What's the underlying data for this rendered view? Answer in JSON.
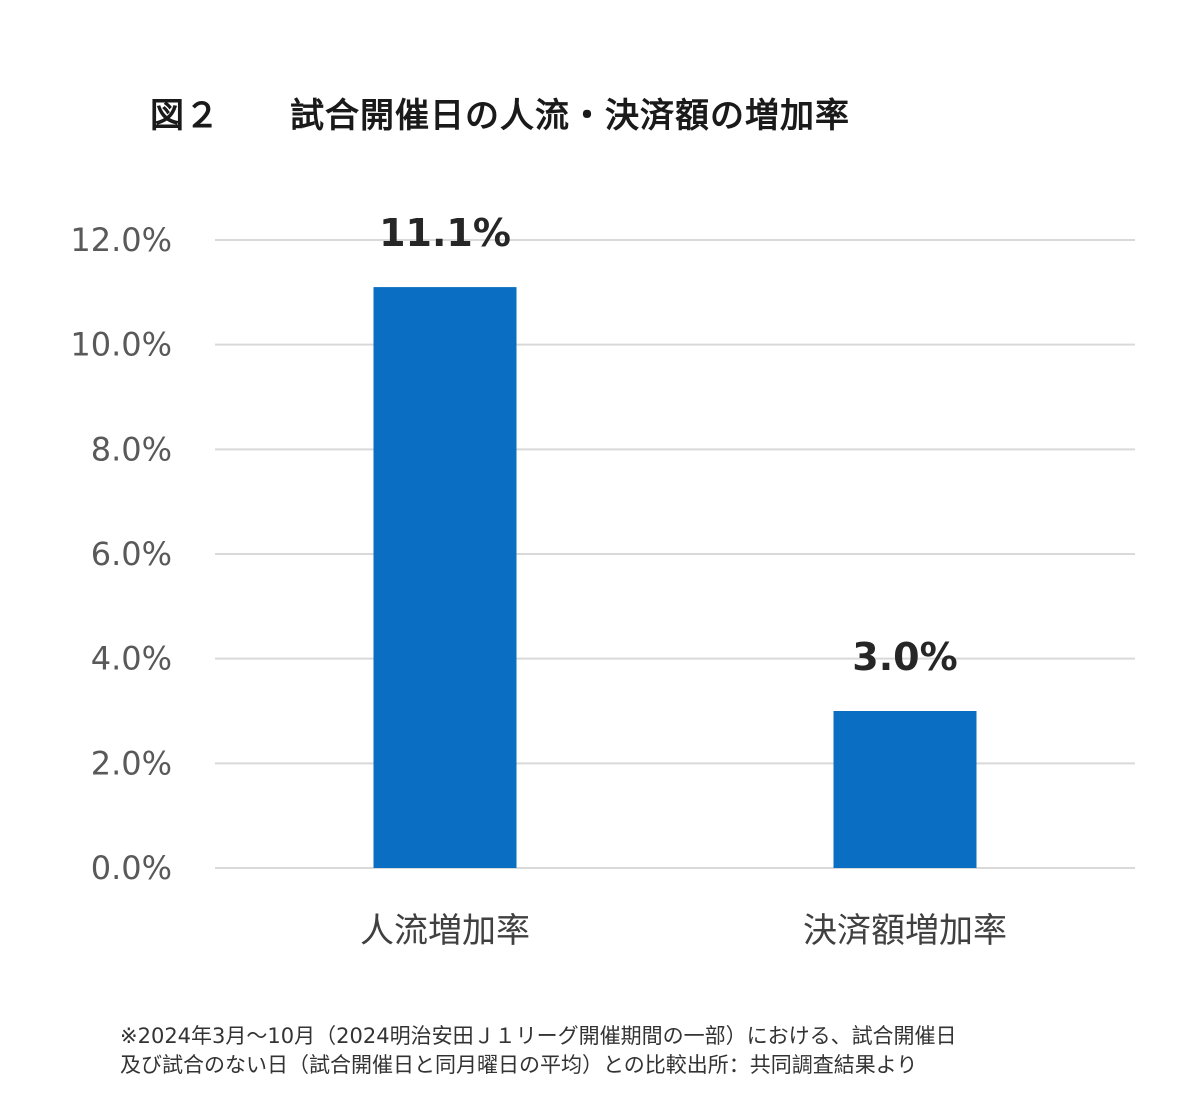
{
  "title": "図２　　試合開催日の人流・決済額の増加率",
  "chart_data": {
    "type": "bar",
    "categories": [
      "人流増加率",
      "決済額増加率"
    ],
    "values": [
      11.1,
      3.0
    ],
    "data_labels": [
      "11.1%",
      "3.0%"
    ],
    "ylim": [
      0,
      12
    ],
    "yticks": [
      0,
      2,
      4,
      6,
      8,
      10,
      12
    ],
    "ytick_labels": [
      "0.0%",
      "2.0%",
      "4.0%",
      "6.0%",
      "8.0%",
      "10.0%",
      "12.0%"
    ],
    "grid": true,
    "bar_color": "#0a6fc2",
    "grid_color": "#d9d9d9"
  },
  "footnote": {
    "line1": "※2024年3月～10月（2024明治安田Ｊ１リーグ開催期間の一部）における、試合開催日",
    "line2": "及び試合のない日（試合開催日と同月曜日の平均）との比較出所：共同調査結果より"
  }
}
